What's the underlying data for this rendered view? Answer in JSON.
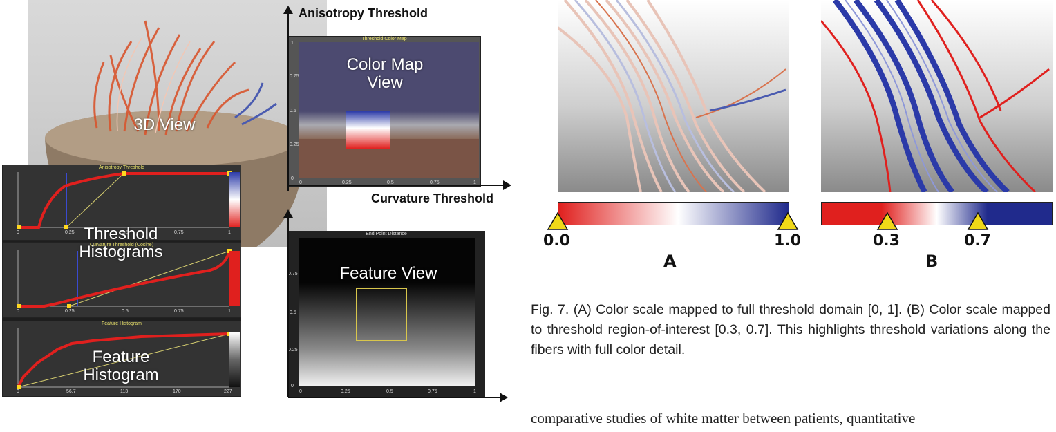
{
  "left_figure": {
    "view_3d_label": "3D View",
    "threshold_histograms_label": "Threshold Histograms",
    "feature_histogram_label": "Feature Histogram",
    "color_map_label": "Color Map View",
    "feature_view_label": "Feature View",
    "anisotropy_axis": "Anisotropy Threshold",
    "curvature_axis": "Curvature Threshold",
    "panels": {
      "anisotropy_title": "Anisotropy Threshold",
      "curvature_title": "Curvature Threshold (Cosine)",
      "feature_title": "Feature Histogram",
      "colormap_title": "Threshold Color Map",
      "endpoint_title": "End Point Distance"
    },
    "hist_ticks": [
      "0",
      "0.25",
      "0.5",
      "0.75",
      "1"
    ],
    "feature_ticks": [
      "0",
      "56.7",
      "113",
      "170",
      "227"
    ],
    "colormap_xticks": [
      "0",
      "0.25",
      "0.5",
      "0.75",
      "1"
    ],
    "colormap_yticks": [
      "1",
      "0.75",
      "0.5",
      "0.25",
      "0"
    ],
    "feature_view_xticks": [
      "0",
      "0.25",
      "0.5",
      "0.75",
      "1"
    ],
    "feature_view_yticks": [
      "0.75",
      "0.5",
      "0.25",
      "0"
    ]
  },
  "right_figure": {
    "bar_a": {
      "min_label": "0.0",
      "max_label": "1.0",
      "letter": "A",
      "lo": 0.0,
      "hi": 1.0
    },
    "bar_b": {
      "lo_label": "0.3",
      "hi_label": "0.7",
      "letter": "B",
      "lo": 0.3,
      "hi": 0.7
    },
    "colors": {
      "red": "#e0201e",
      "white": "#ffffff",
      "blue": "#202a8c"
    }
  },
  "caption": "Fig. 7. (A) Color scale mapped to full threshold domain [0, 1]. (B) Color scale mapped to threshold region-of-interest [0.3, 0.7]. This highlights threshold variations along the fibers with full color detail.",
  "body_text": "comparative studies of white matter between patients, quantitative"
}
